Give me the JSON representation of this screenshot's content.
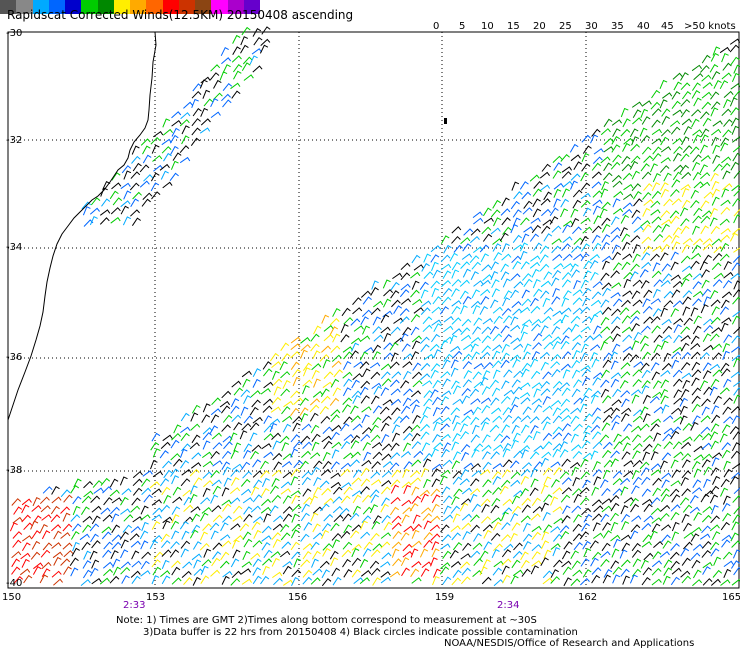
{
  "title": "Rapidscat Corrected Winds(12.5KM) 20150408 ascending",
  "colorbar": {
    "colors": [
      "#555555",
      "#888888",
      "#00aaff",
      "#0066ff",
      "#0000cc",
      "#00cc00",
      "#008800",
      "#ffee00",
      "#ffaa00",
      "#ff6600",
      "#ff0000",
      "#cc3300",
      "#8b4513",
      "#ff00ff",
      "#aa00cc",
      "#6600cc"
    ],
    "labels": [
      "0",
      "5",
      "10",
      "15",
      "20",
      "25",
      "30",
      "35",
      "40",
      "45",
      ">50 knots"
    ]
  },
  "axes": {
    "lat_labels": [
      "-30",
      "-32",
      "-34",
      "-36",
      "-38",
      "-40"
    ],
    "lon_labels": [
      "150",
      "153",
      "156",
      "159",
      "162",
      "165"
    ]
  },
  "pass_times": [
    "2:33",
    "2:34"
  ],
  "notes": [
    "Note: 1) Times are GMT 2)Times along bottom correspond to measurement at ~30S",
    "3)Data buffer is 22 hrs from 20150408 4) Black circles indicate possible contamination",
    "NOAA/NESDIS/Office of Research and Applications"
  ]
}
